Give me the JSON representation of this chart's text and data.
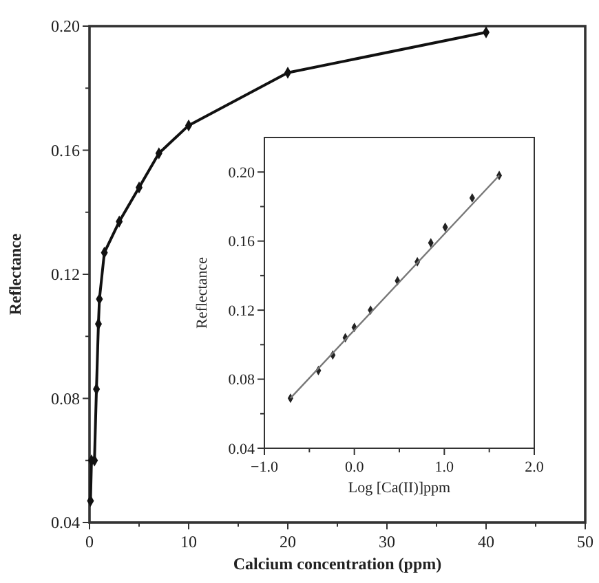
{
  "chart_data": [
    {
      "type": "line",
      "xlabel": "Calcium concentration (ppm)",
      "ylabel": "Reflectance",
      "xlim": [
        0,
        50
      ],
      "ylim": [
        0.04,
        0.2
      ],
      "xticks": [
        0,
        {
          "value": 5,
          "label": null
        },
        10,
        {
          "value": 15,
          "label": null
        },
        20,
        {
          "value": 25,
          "label": null
        },
        30,
        {
          "value": 35,
          "label": null
        },
        40,
        {
          "value": 45,
          "label": null
        },
        50
      ],
      "yticks": [
        0.04,
        {
          "value": 0.06,
          "label": null
        },
        0.08,
        {
          "value": 0.1,
          "label": null
        },
        0.12,
        {
          "value": 0.14,
          "label": null
        },
        0.16,
        {
          "value": 0.18,
          "label": null
        },
        {
          "value": 0.2,
          "label": "0.20"
        }
      ],
      "marker": "diamond",
      "series": [
        {
          "color": "#111111",
          "x": [
            0.1,
            0.2,
            0.5,
            0.7,
            0.9,
            1.0,
            1.5,
            3,
            5,
            7,
            10,
            20,
            40
          ],
          "values": [
            0.047,
            0.06,
            0.06,
            0.083,
            0.104,
            0.112,
            0.127,
            0.137,
            0.148,
            0.159,
            0.168,
            0.185,
            0.198
          ]
        }
      ]
    },
    {
      "type": "scatter",
      "xlabel": "Log [Ca(II)]ppm",
      "ylabel": "Reflectance",
      "xlim": [
        -1,
        2
      ],
      "ylim": [
        0.04,
        0.22
      ],
      "xticks": [
        {
          "value": -1,
          "label": "−1.0"
        },
        {
          "value": -0.5,
          "label": null
        },
        {
          "value": 0,
          "label": "0.0"
        },
        {
          "value": 0.5,
          "label": null
        },
        {
          "value": 1,
          "label": "1.0"
        },
        {
          "value": 1.5,
          "label": null
        },
        {
          "value": 2,
          "label": "2.0"
        }
      ],
      "yticks": [
        0.04,
        {
          "value": 0.06,
          "label": null
        },
        0.08,
        {
          "value": 0.1,
          "label": null
        },
        0.12,
        {
          "value": 0.14,
          "label": null
        },
        0.16,
        {
          "value": 0.18,
          "label": null
        },
        {
          "value": 0.2,
          "label": "0.20"
        }
      ],
      "marker": "diamond",
      "series": [
        {
          "color": "#222222",
          "x": [
            -0.71,
            -0.4,
            -0.24,
            -0.1,
            0.0,
            0.18,
            0.48,
            0.7,
            0.85,
            1.01,
            1.31,
            1.61
          ],
          "values": [
            0.069,
            0.085,
            0.094,
            0.104,
            0.11,
            0.12,
            0.137,
            0.148,
            0.159,
            0.168,
            0.185,
            0.198
          ]
        },
        {
          "type": "line",
          "color": "#777777",
          "marker": "none",
          "x": [
            -0.71,
            1.61
          ],
          "values": [
            0.069,
            0.198
          ]
        }
      ]
    }
  ]
}
